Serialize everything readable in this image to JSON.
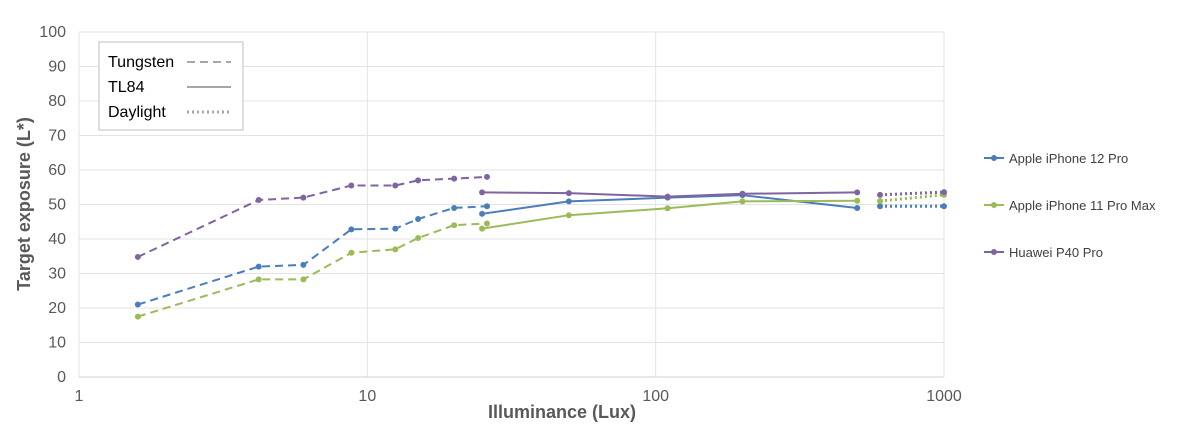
{
  "chart_data": {
    "type": "line",
    "xlabel": "Illuminance (Lux)",
    "ylabel": "Target exposure (L*)",
    "x_scale": "log",
    "xlim": [
      1,
      1000
    ],
    "ylim": [
      0,
      100
    ],
    "x_ticks": [
      "1",
      "10",
      "100",
      "1000"
    ],
    "y_ticks": [
      "0",
      "10",
      "20",
      "30",
      "40",
      "50",
      "60",
      "70",
      "80",
      "90",
      "100"
    ],
    "grid": true,
    "style_legend": {
      "placement": "top-left",
      "entries": [
        {
          "label": "Tungsten",
          "dash": "dashed"
        },
        {
          "label": "TL84",
          "dash": "solid"
        },
        {
          "label": "Daylight",
          "dash": "dotted"
        }
      ]
    },
    "legend_placement": "right",
    "series": [
      {
        "name": "Apple iPhone 12 Pro",
        "color": "#4a7ebb",
        "segments": [
          {
            "condition": "Tungsten",
            "x": [
              1.6,
              4.2,
              6.0,
              8.8,
              12.5,
              15,
              20,
              26
            ],
            "y": [
              21,
              32,
              32.5,
              42.8,
              43,
              45.8,
              49,
              49.5
            ]
          },
          {
            "condition": "TL84",
            "x": [
              25,
              50,
              110,
              200,
              500
            ],
            "y": [
              47.3,
              50.9,
              52,
              52.7,
              49
            ]
          },
          {
            "condition": "Daylight",
            "x": [
              600,
              1000
            ],
            "y": [
              49.5,
              49.5
            ]
          }
        ]
      },
      {
        "name": "Apple iPhone 11 Pro Max",
        "color": "#9bbb59",
        "segments": [
          {
            "condition": "Tungsten",
            "x": [
              1.6,
              4.2,
              6.0,
              8.8,
              12.5,
              15,
              20,
              26
            ],
            "y": [
              17.5,
              28.3,
              28.3,
              36,
              37,
              40.3,
              44,
              44.5
            ]
          },
          {
            "condition": "TL84",
            "x": [
              25,
              50,
              110,
              200,
              500
            ],
            "y": [
              43,
              46.9,
              48.9,
              50.9,
              51.1
            ]
          },
          {
            "condition": "Daylight",
            "x": [
              600,
              1000
            ],
            "y": [
              51,
              52.8
            ]
          }
        ]
      },
      {
        "name": "Huawei P40 Pro",
        "color": "#8064a2",
        "segments": [
          {
            "condition": "Tungsten",
            "x": [
              1.6,
              4.2,
              6.0,
              8.8,
              12.5,
              15,
              20,
              26
            ],
            "y": [
              34.8,
              51.3,
              52,
              55.5,
              55.5,
              57,
              57.5,
              58
            ]
          },
          {
            "condition": "TL84",
            "x": [
              25,
              50,
              110,
              200,
              500
            ],
            "y": [
              53.5,
              53.3,
              52.3,
              53.1,
              53.5
            ]
          },
          {
            "condition": "Daylight",
            "x": [
              600,
              1000
            ],
            "y": [
              52.8,
              53.6
            ]
          }
        ]
      }
    ]
  }
}
